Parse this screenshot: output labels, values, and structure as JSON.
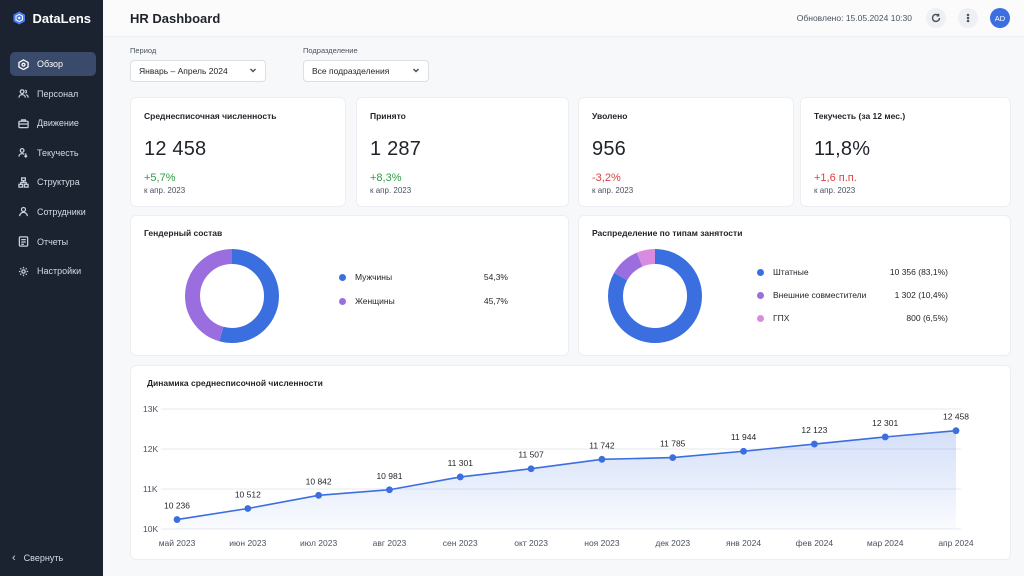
{
  "app": {
    "name": "DataLens"
  },
  "sidebar": {
    "items": [
      {
        "label": "Обзор",
        "icon": "overview-icon",
        "active": true
      },
      {
        "label": "Персонал",
        "icon": "people-icon"
      },
      {
        "label": "Движение",
        "icon": "briefcase-icon"
      },
      {
        "label": "Текучесть",
        "icon": "turnover-icon"
      },
      {
        "label": "Структура",
        "icon": "structure-icon"
      },
      {
        "label": "Сотрудники",
        "icon": "employee-icon"
      },
      {
        "label": "Отчеты",
        "icon": "report-icon"
      },
      {
        "label": "Настройки",
        "icon": "gear-icon"
      }
    ],
    "collapse_label": "Свернуть"
  },
  "header": {
    "title": "HR Dashboard",
    "updated": "Обновлено: 15.05.2024 10:30",
    "avatar": "AD"
  },
  "filters": {
    "period": {
      "label": "Период",
      "value": "Январь – Апрель 2024"
    },
    "department": {
      "label": "Подразделение",
      "value": "Все подразделения"
    }
  },
  "kpis": [
    {
      "title": "Среднесписочная численность",
      "value": "12 458",
      "delta": "+5,7%",
      "delta_type": "pos",
      "sub": "к апр. 2023"
    },
    {
      "title": "Принято",
      "value": "1 287",
      "delta": "+8,3%",
      "delta_type": "pos",
      "sub": "к апр. 2023"
    },
    {
      "title": "Уволено",
      "value": "956",
      "delta": "-3,2%",
      "delta_type": "neg",
      "sub": "к апр. 2023"
    },
    {
      "title": "Текучесть (за 12 мес.)",
      "value": "11,8%",
      "delta": "+1,6 п.п.",
      "delta_type": "neg",
      "sub": "к апр. 2023"
    }
  ],
  "gender": {
    "title": "Гендерный состав",
    "items": [
      {
        "label": "Мужчины",
        "value": "54,3%",
        "share": 54.3,
        "color": "#3b6fe0"
      },
      {
        "label": "Женщины",
        "value": "45,7%",
        "share": 45.7,
        "color": "#9b6ee0"
      }
    ]
  },
  "employment": {
    "title": "Распределение по типам занятости",
    "items": [
      {
        "label": "Штатные",
        "value": "10 356 (83,1%)",
        "share": 83.1,
        "color": "#3b6fe0"
      },
      {
        "label": "Внешние совместители",
        "value": "1 302 (10,4%)",
        "share": 10.4,
        "color": "#9b6ee0"
      },
      {
        "label": "ГПХ",
        "value": "800 (6,5%)",
        "share": 6.5,
        "color": "#d98be0"
      }
    ]
  },
  "chart_data": {
    "type": "area",
    "title": "Динамика среднесписочной численности",
    "categories": [
      "май 2023",
      "июн 2023",
      "июл 2023",
      "авг 2023",
      "сен 2023",
      "окт 2023",
      "ноя 2023",
      "дек 2023",
      "янв 2024",
      "фев 2024",
      "мар 2024",
      "апр 2024"
    ],
    "values": [
      10236,
      10512,
      10842,
      10981,
      11301,
      11507,
      11742,
      11785,
      11944,
      12123,
      12301,
      12458
    ],
    "value_labels": [
      "10 236",
      "10 512",
      "10 842",
      "10 981",
      "11 301",
      "11 507",
      "11 742",
      "11 785",
      "11 944",
      "12 123",
      "12 301",
      "12 458"
    ],
    "y_ticks": [
      10000,
      11000,
      12000,
      13000
    ],
    "y_tick_labels": [
      "10K",
      "11K",
      "12K",
      "13K"
    ],
    "ylim": [
      10000,
      13000
    ],
    "grid": true,
    "legend": "none",
    "color": "#3b6fe0"
  }
}
